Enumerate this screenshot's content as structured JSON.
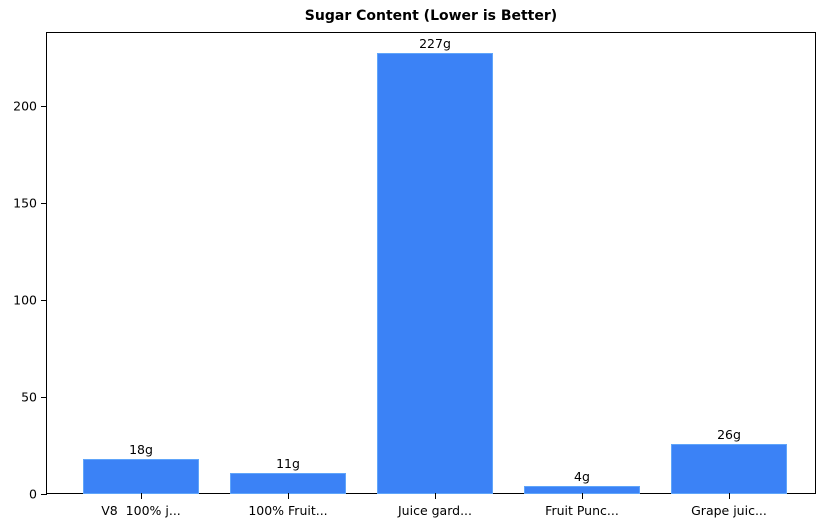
{
  "chart_data": {
    "type": "bar",
    "title": "Sugar Content (Lower is Better)",
    "xlabel": "",
    "ylabel": "",
    "categories": [
      "V8  100% j...",
      "100% Fruit...",
      "Juice gard...",
      "Fruit Punc...",
      "Grape juic..."
    ],
    "values": [
      18,
      11,
      227,
      4,
      26
    ],
    "bar_labels": [
      "18g",
      "11g",
      "227g",
      "4g",
      "26g"
    ],
    "ylim": [
      0,
      238
    ],
    "yticks": [
      0,
      50,
      100,
      150,
      200
    ],
    "grid": false,
    "legend": null,
    "bar_color": "#3b82f6"
  }
}
